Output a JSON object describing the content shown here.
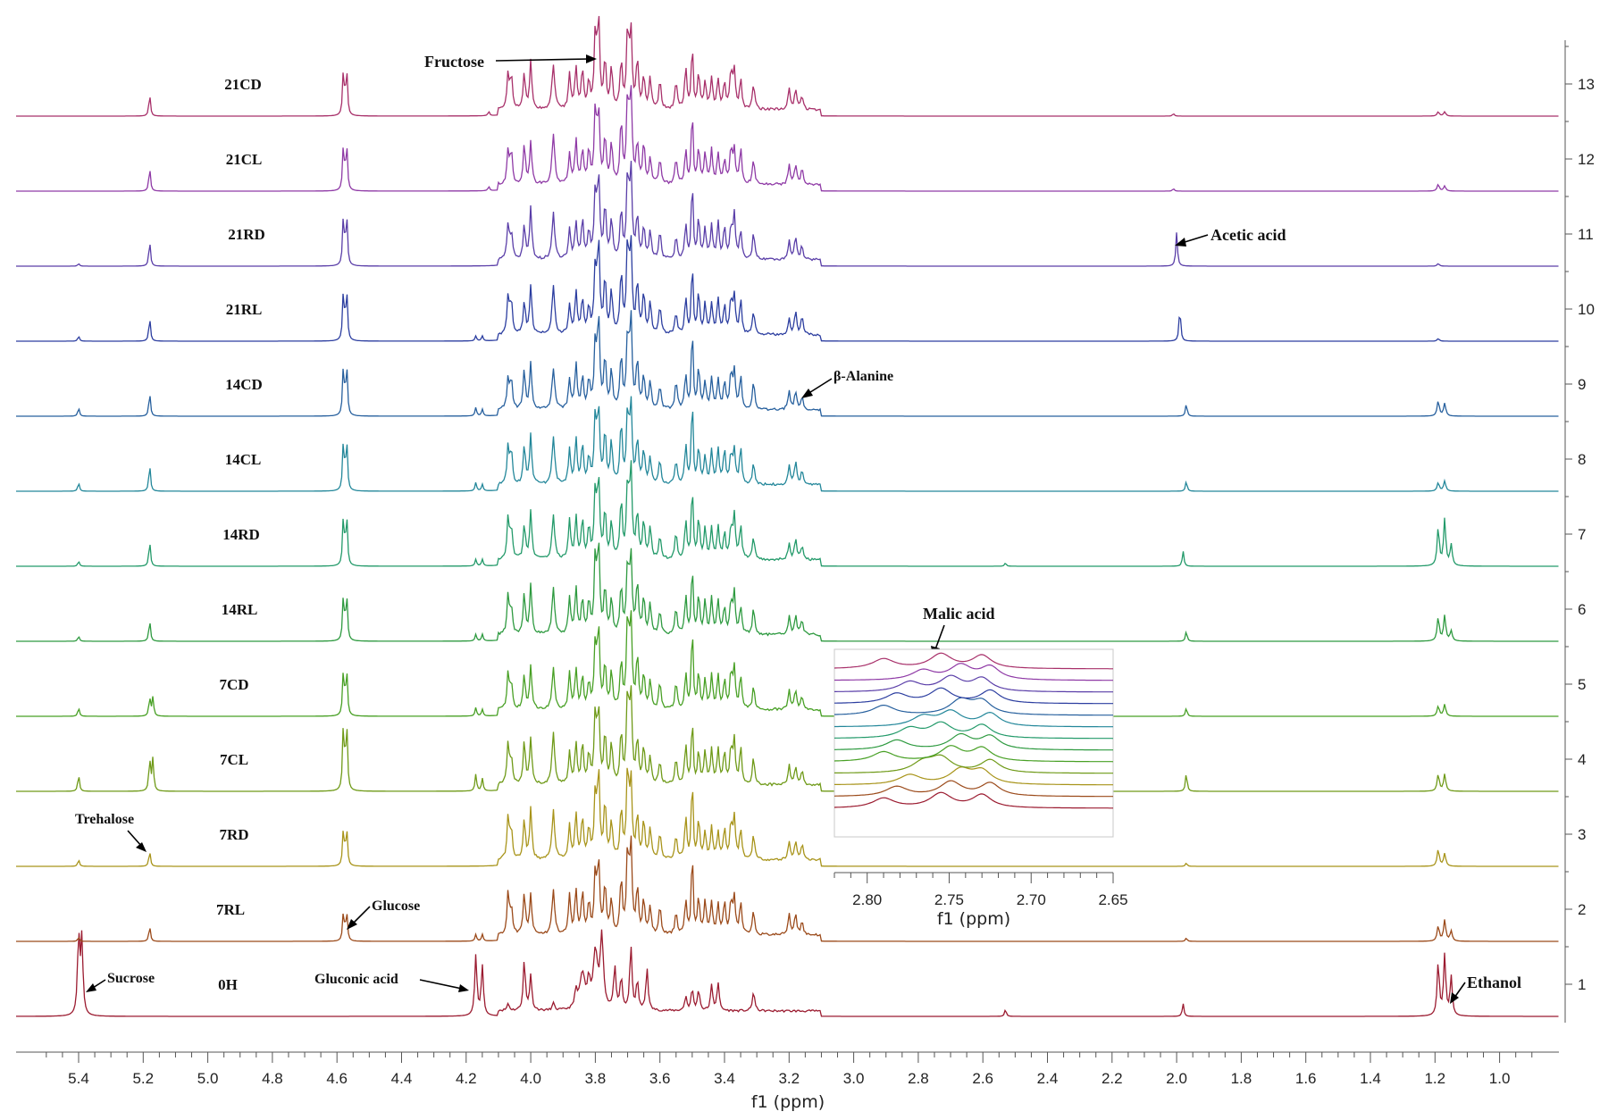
{
  "chart_data": {
    "type": "line",
    "title": "",
    "xlabel": "f1 (ppm)",
    "x_ticks": [
      "5.4",
      "5.2",
      "5.0",
      "4.8",
      "4.6",
      "4.4",
      "4.2",
      "4.0",
      "3.8",
      "3.6",
      "3.4",
      "3.2",
      "3.0",
      "2.8",
      "2.6",
      "2.4",
      "2.2",
      "2.0",
      "1.8",
      "1.6",
      "1.4",
      "1.2",
      "1.0"
    ],
    "xlim": [
      5.6,
      0.8
    ],
    "y_ticks": [
      "1",
      "2",
      "3",
      "4",
      "5",
      "6",
      "7",
      "8",
      "9",
      "10",
      "11",
      "12",
      "13"
    ],
    "ylim": [
      0.5,
      13.5
    ],
    "series": [
      {
        "name": "0H",
        "index": 1,
        "color": "#9b1b30"
      },
      {
        "name": "7RL",
        "index": 2,
        "color": "#9b4a1a"
      },
      {
        "name": "7RD",
        "index": 3,
        "color": "#a8941a"
      },
      {
        "name": "7CL",
        "index": 4,
        "color": "#6f9a18"
      },
      {
        "name": "7CD",
        "index": 5,
        "color": "#48a025"
      },
      {
        "name": "14RL",
        "index": 6,
        "color": "#2e9a40"
      },
      {
        "name": "14RD",
        "index": 7,
        "color": "#239a6a"
      },
      {
        "name": "14CL",
        "index": 8,
        "color": "#23879a"
      },
      {
        "name": "14CD",
        "index": 9,
        "color": "#27609e"
      },
      {
        "name": "21RL",
        "index": 10,
        "color": "#2c3ea0"
      },
      {
        "name": "21RD",
        "index": 11,
        "color": "#5a3ea8"
      },
      {
        "name": "21CL",
        "index": 12,
        "color": "#8f3aa6"
      },
      {
        "name": "21CD",
        "index": 13,
        "color": "#a8306a"
      }
    ],
    "annotations": [
      "Fructose",
      "Acetic acid",
      "β-Alanine",
      "Malic acid",
      "Trehalose",
      "Glucose",
      "Sucrose",
      "Gluconic acid",
      "Ethanol"
    ],
    "inset": {
      "xlabel": "f1 (ppm)",
      "x_ticks": [
        "2.80",
        "2.75",
        "2.70",
        "2.65"
      ],
      "xlim": [
        2.82,
        2.65
      ]
    }
  }
}
